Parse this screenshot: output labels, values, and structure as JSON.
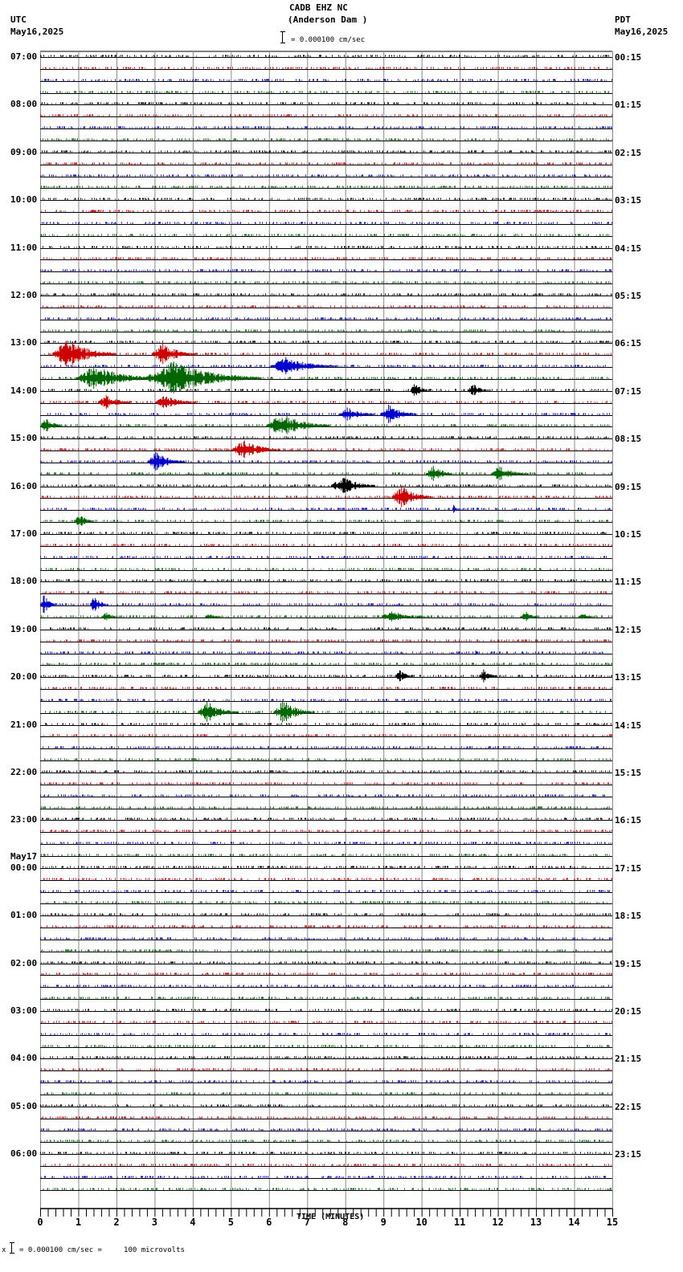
{
  "header": {
    "title": "CADB EHZ NC",
    "subtitle": "(Anderson Dam )",
    "scale_text": "= 0.000100 cm/sec",
    "left_tz": "UTC",
    "left_date": "May16,2025",
    "right_tz": "PDT",
    "right_date": "May16,2025"
  },
  "footer": {
    "scale_text": "= 0.000100 cm/sec =     100 microvolts",
    "marker": "x"
  },
  "colors": {
    "trace_cycle": [
      "#000000",
      "#cc0000",
      "#0000cc",
      "#006600"
    ],
    "grid": "#888888",
    "baseline": "#000000"
  },
  "chart_data": {
    "type": "seismogram-helicorder",
    "title": "CADB EHZ NC (Anderson Dam )",
    "xlabel": "TIME (MINUTES)",
    "xlim": [
      0,
      15
    ],
    "x_ticks": [
      0,
      1,
      2,
      3,
      4,
      5,
      6,
      7,
      8,
      9,
      10,
      11,
      12,
      13,
      14,
      15
    ],
    "minor_ticks_per_minute": 5,
    "rows_per_hour": 4,
    "row_minutes": 15,
    "row_count": 96,
    "scale": "0.000100 cm/sec = 100 microvolts",
    "left_labels": [
      {
        "row": 0,
        "text": "07:00"
      },
      {
        "row": 4,
        "text": "08:00"
      },
      {
        "row": 8,
        "text": "09:00"
      },
      {
        "row": 12,
        "text": "10:00"
      },
      {
        "row": 16,
        "text": "11:00"
      },
      {
        "row": 20,
        "text": "12:00"
      },
      {
        "row": 24,
        "text": "13:00"
      },
      {
        "row": 28,
        "text": "14:00"
      },
      {
        "row": 32,
        "text": "15:00"
      },
      {
        "row": 36,
        "text": "16:00"
      },
      {
        "row": 40,
        "text": "17:00"
      },
      {
        "row": 44,
        "text": "18:00"
      },
      {
        "row": 48,
        "text": "19:00"
      },
      {
        "row": 52,
        "text": "20:00"
      },
      {
        "row": 56,
        "text": "21:00"
      },
      {
        "row": 60,
        "text": "22:00"
      },
      {
        "row": 64,
        "text": "23:00"
      },
      {
        "row": 68,
        "text": "00:00",
        "date": "May17"
      },
      {
        "row": 72,
        "text": "01:00"
      },
      {
        "row": 76,
        "text": "02:00"
      },
      {
        "row": 80,
        "text": "03:00"
      },
      {
        "row": 84,
        "text": "04:00"
      },
      {
        "row": 88,
        "text": "05:00"
      },
      {
        "row": 92,
        "text": "06:00"
      }
    ],
    "right_labels": [
      {
        "row": 0,
        "text": "00:15"
      },
      {
        "row": 4,
        "text": "01:15"
      },
      {
        "row": 8,
        "text": "02:15"
      },
      {
        "row": 12,
        "text": "03:15"
      },
      {
        "row": 16,
        "text": "04:15"
      },
      {
        "row": 20,
        "text": "05:15"
      },
      {
        "row": 24,
        "text": "06:15"
      },
      {
        "row": 28,
        "text": "07:15"
      },
      {
        "row": 32,
        "text": "08:15"
      },
      {
        "row": 36,
        "text": "09:15"
      },
      {
        "row": 40,
        "text": "10:15"
      },
      {
        "row": 44,
        "text": "11:15"
      },
      {
        "row": 48,
        "text": "12:15"
      },
      {
        "row": 52,
        "text": "13:15"
      },
      {
        "row": 56,
        "text": "14:15"
      },
      {
        "row": 60,
        "text": "15:15"
      },
      {
        "row": 64,
        "text": "16:15"
      },
      {
        "row": 68,
        "text": "17:15"
      },
      {
        "row": 72,
        "text": "18:15"
      },
      {
        "row": 76,
        "text": "19:15"
      },
      {
        "row": 80,
        "text": "20:15"
      },
      {
        "row": 84,
        "text": "21:15"
      },
      {
        "row": 88,
        "text": "22:15"
      },
      {
        "row": 92,
        "text": "23:15"
      }
    ],
    "events": [
      {
        "row": 13,
        "start": 1.3,
        "end": 1.6,
        "amp": 2
      },
      {
        "row": 25,
        "start": 0.3,
        "end": 2.0,
        "amp": 16
      },
      {
        "row": 25,
        "start": 2.9,
        "end": 4.1,
        "amp": 12
      },
      {
        "row": 26,
        "start": 6.0,
        "end": 7.8,
        "amp": 10
      },
      {
        "row": 27,
        "start": 0.9,
        "end": 3.0,
        "amp": 14
      },
      {
        "row": 27,
        "start": 2.7,
        "end": 5.8,
        "amp": 18
      },
      {
        "row": 28,
        "start": 9.7,
        "end": 10.2,
        "amp": 8
      },
      {
        "row": 28,
        "start": 11.2,
        "end": 11.8,
        "amp": 7
      },
      {
        "row": 29,
        "start": 1.5,
        "end": 2.4,
        "amp": 8
      },
      {
        "row": 29,
        "start": 3.0,
        "end": 4.1,
        "amp": 8
      },
      {
        "row": 30,
        "start": 7.8,
        "end": 8.8,
        "amp": 8
      },
      {
        "row": 30,
        "start": 8.9,
        "end": 9.9,
        "amp": 11
      },
      {
        "row": 31,
        "start": 0.0,
        "end": 0.6,
        "amp": 9
      },
      {
        "row": 31,
        "start": 5.9,
        "end": 7.6,
        "amp": 13
      },
      {
        "row": 33,
        "start": 5.0,
        "end": 6.3,
        "amp": 11
      },
      {
        "row": 34,
        "start": 2.8,
        "end": 3.8,
        "amp": 11
      },
      {
        "row": 35,
        "start": 10.1,
        "end": 10.9,
        "amp": 9
      },
      {
        "row": 35,
        "start": 11.8,
        "end": 12.8,
        "amp": 9
      },
      {
        "row": 36,
        "start": 7.6,
        "end": 8.8,
        "amp": 11
      },
      {
        "row": 37,
        "start": 9.2,
        "end": 10.3,
        "amp": 12
      },
      {
        "row": 38,
        "start": 10.8,
        "end": 11.0,
        "amp": 7
      },
      {
        "row": 39,
        "start": 0.9,
        "end": 1.4,
        "amp": 9
      },
      {
        "row": 46,
        "start": 0.0,
        "end": 0.4,
        "amp": 12
      },
      {
        "row": 46,
        "start": 1.3,
        "end": 1.8,
        "amp": 10
      },
      {
        "row": 47,
        "start": 1.6,
        "end": 2.1,
        "amp": 5
      },
      {
        "row": 47,
        "start": 4.3,
        "end": 4.8,
        "amp": 4
      },
      {
        "row": 47,
        "start": 8.9,
        "end": 10.2,
        "amp": 6
      },
      {
        "row": 47,
        "start": 12.6,
        "end": 13.1,
        "amp": 6
      },
      {
        "row": 47,
        "start": 14.1,
        "end": 14.5,
        "amp": 5
      },
      {
        "row": 50,
        "start": 11.4,
        "end": 11.5,
        "amp": 5
      },
      {
        "row": 52,
        "start": 9.3,
        "end": 9.8,
        "amp": 8
      },
      {
        "row": 52,
        "start": 11.5,
        "end": 12.0,
        "amp": 8
      },
      {
        "row": 55,
        "start": 4.1,
        "end": 5.2,
        "amp": 12
      },
      {
        "row": 55,
        "start": 6.1,
        "end": 7.2,
        "amp": 13
      }
    ]
  }
}
